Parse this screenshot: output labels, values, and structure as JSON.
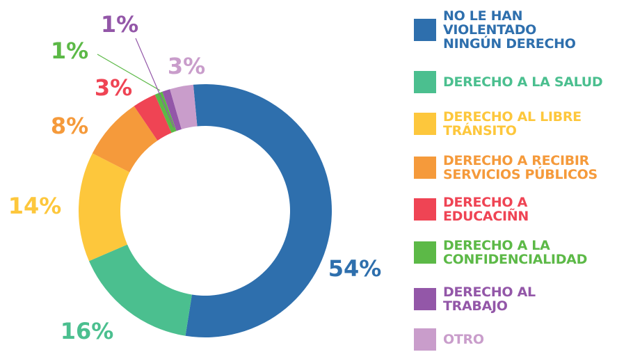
{
  "chart_data": {
    "type": "donut",
    "categories": [
      "NO LE HAN VIOLENTADO NINGÚN DERECHO",
      "DERECHO A LA SALUD",
      "DERECHO AL LIBRE TRÁNSITO",
      "DERECHO A RECIBIR SERVICIOS PÚBLICOS",
      "DERECHO A EDUCACIÑN",
      "DERECHO A LA CONFIDENCIALIDAD",
      "DERECHO AL TRABAJO",
      "OTRO"
    ],
    "values": [
      54,
      16,
      14,
      8,
      3,
      1,
      1,
      3
    ],
    "value_labels": [
      "54%",
      "16%",
      "14%",
      "8%",
      "3%",
      "1%",
      "1%",
      "3%"
    ],
    "colors": [
      "#2e6fad",
      "#4bbf8f",
      "#fdc73c",
      "#f59a3b",
      "#ef4454",
      "#5cb947",
      "#9357a8",
      "#c99dcb"
    ],
    "legend": "right"
  }
}
